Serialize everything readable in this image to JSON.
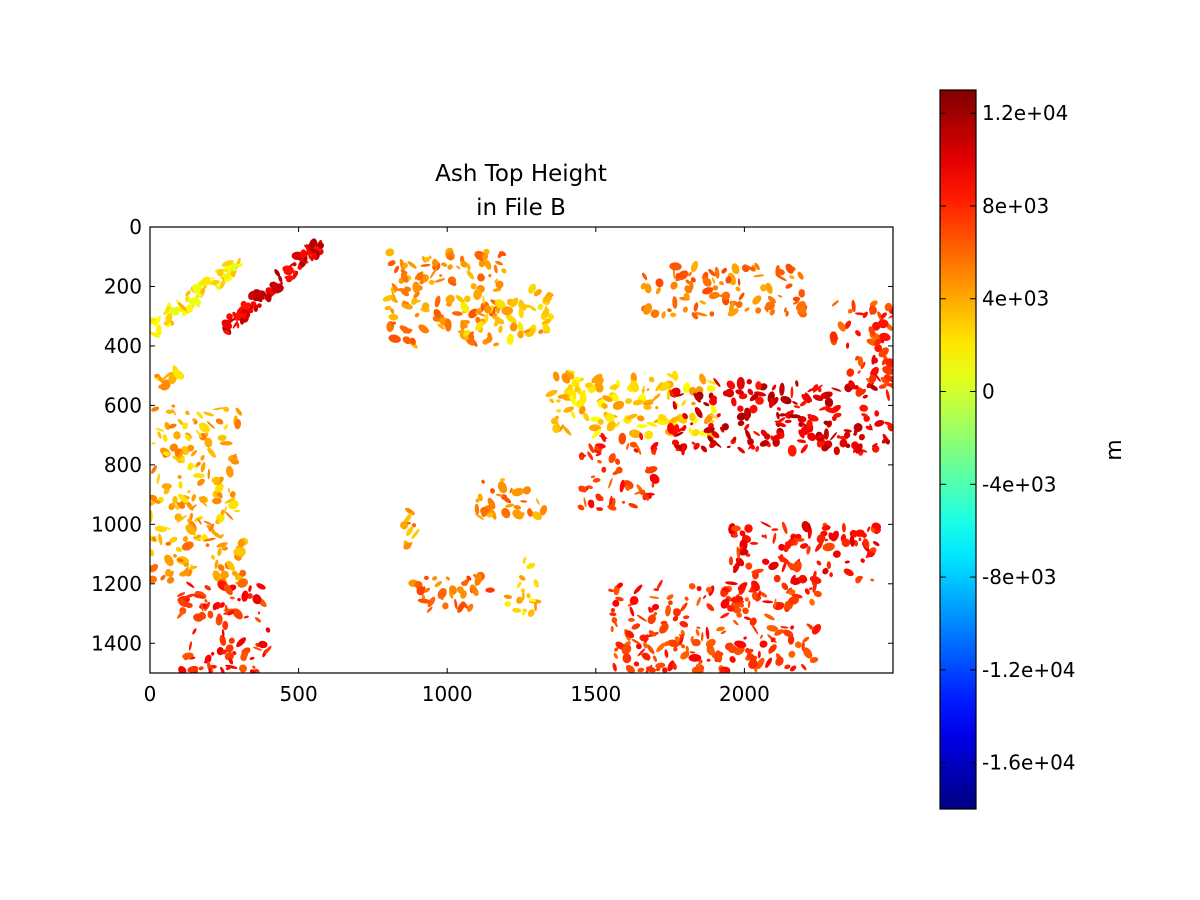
{
  "chart_data": {
    "type": "heatmap",
    "title": "Ash Top Height\nin File B",
    "xlabel": "",
    "ylabel": "",
    "x_range": [
      0,
      2500
    ],
    "y_range": [
      1500,
      0
    ],
    "x_ticks": [
      0,
      500,
      1000,
      1500,
      2000
    ],
    "y_ticks": [
      0,
      200,
      400,
      600,
      800,
      1000,
      1200,
      1400
    ],
    "grid": false,
    "colorbar": {
      "label": "m",
      "range": [
        -18000,
        13000
      ],
      "ticks": [
        12000,
        8000,
        4000,
        0,
        -4000,
        -8000,
        -12000,
        -16000
      ],
      "tick_labels": [
        "1.2e+04",
        "8e+03",
        "4e+03",
        "0",
        "-4e+03",
        "-8e+03",
        "-1.2e+04",
        "-1.6e+04"
      ],
      "colormap": "jet"
    },
    "regions": [
      {
        "x": [
          0,
          300
        ],
        "y": [
          120,
          350
        ],
        "value": 2000,
        "shape": "band-diagonal"
      },
      {
        "x": [
          250,
          580
        ],
        "y": [
          50,
          340
        ],
        "value": 10000,
        "shape": "streaks"
      },
      {
        "x": [
          0,
          100
        ],
        "y": [
          470,
          540
        ],
        "value": 3500
      },
      {
        "x": [
          0,
          300
        ],
        "y": [
          600,
          1050
        ],
        "value": 3800
      },
      {
        "x": [
          0,
          320
        ],
        "y": [
          1050,
          1200
        ],
        "value": 4500
      },
      {
        "x": [
          100,
          400
        ],
        "y": [
          1200,
          1500
        ],
        "value": 8000
      },
      {
        "x": [
          800,
          1200
        ],
        "y": [
          80,
          400
        ],
        "value": 5000
      },
      {
        "x": [
          1050,
          1350
        ],
        "y": [
          200,
          380
        ],
        "value": 3500
      },
      {
        "x": [
          1400,
          1470
        ],
        "y": [
          480,
          580
        ],
        "value": 2800
      },
      {
        "x": [
          1350,
          1900
        ],
        "y": [
          500,
          700
        ],
        "value": 3000
      },
      {
        "x": [
          1450,
          1700
        ],
        "y": [
          700,
          950
        ],
        "value": 7500
      },
      {
        "x": [
          1750,
          2500
        ],
        "y": [
          520,
          760
        ],
        "value": 10000
      },
      {
        "x": [
          2350,
          2500
        ],
        "y": [
          380,
          560
        ],
        "value": 8000
      },
      {
        "x": [
          850,
          900
        ],
        "y": [
          950,
          1120
        ],
        "value": 4500
      },
      {
        "x": [
          880,
          1150
        ],
        "y": [
          1170,
          1300
        ],
        "value": 6000
      },
      {
        "x": [
          1100,
          1350
        ],
        "y": [
          850,
          980
        ],
        "value": 5000
      },
      {
        "x": [
          1200,
          1300
        ],
        "y": [
          1120,
          1300
        ],
        "value": 3000
      },
      {
        "x": [
          1550,
          2250
        ],
        "y": [
          1200,
          1500
        ],
        "value": 7500
      },
      {
        "x": [
          1950,
          2450
        ],
        "y": [
          1000,
          1200
        ],
        "value": 8500
      },
      {
        "x": [
          1650,
          2200
        ],
        "y": [
          130,
          300
        ],
        "value": 5500
      },
      {
        "x": [
          2300,
          2500
        ],
        "y": [
          250,
          400
        ],
        "value": 7500
      }
    ]
  }
}
